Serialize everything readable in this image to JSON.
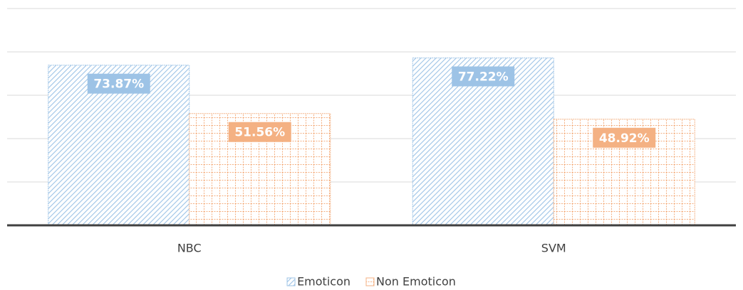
{
  "chart_data": {
    "type": "bar",
    "categories": [
      "NBC",
      "SVM"
    ],
    "series": [
      {
        "name": "Emoticon",
        "color": "#9dc3e6",
        "values": [
          73.87,
          77.22
        ],
        "value_labels": [
          "73.87%",
          "77.22%"
        ]
      },
      {
        "name": "Non Emoticon",
        "color": "#f4b183",
        "values": [
          51.56,
          48.92
        ],
        "value_labels": [
          "51.56%",
          "48.92%"
        ]
      }
    ],
    "ylim": [
      0,
      100
    ],
    "yticks": [
      0,
      20,
      40,
      60,
      80,
      100
    ],
    "grid": true,
    "legend": "bottom"
  }
}
